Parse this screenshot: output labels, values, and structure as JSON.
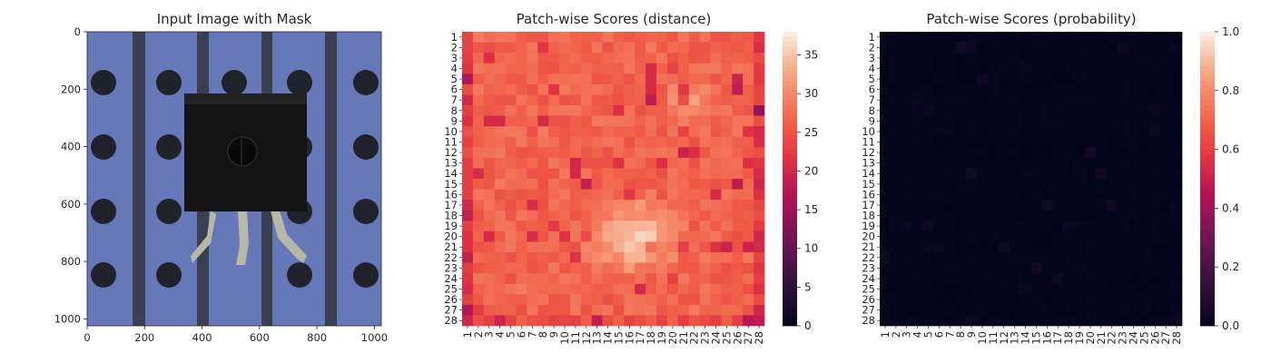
{
  "panels": [
    {
      "title": "Input Image with Mask",
      "type": "image",
      "x_ticks": [
        "0",
        "200",
        "400",
        "600",
        "800",
        "1000"
      ],
      "y_ticks": [
        "0",
        "200",
        "400",
        "600",
        "800",
        "1000"
      ],
      "image_extent": [
        0,
        1024
      ],
      "content": "photo of a black transistor package on a blue perforated board"
    },
    {
      "title": "Patch-wise Scores (distance)",
      "type": "heatmap",
      "colormap": "rocket",
      "grid": "28x28",
      "colorbar_ticks": [
        "0",
        "5",
        "10",
        "15",
        "20",
        "25",
        "30",
        "35"
      ],
      "colorbar_range": [
        0,
        38
      ]
    },
    {
      "title": "Patch-wise Scores (probability)",
      "type": "heatmap",
      "colormap": "rocket",
      "grid": "28x28",
      "colorbar_ticks": [
        "0.0",
        "0.2",
        "0.4",
        "0.6",
        "0.8",
        "1.0"
      ],
      "colorbar_range": [
        0,
        1
      ]
    }
  ],
  "chart_data": [
    {
      "type": "image",
      "title": "Input Image with Mask",
      "xlim": [
        0,
        1024
      ],
      "ylim": [
        1024,
        0
      ]
    },
    {
      "type": "heatmap",
      "title": "Patch-wise Scores (distance)",
      "rows": [
        "1",
        "2",
        "3",
        "4",
        "5",
        "6",
        "7",
        "8",
        "9",
        "10",
        "11",
        "12",
        "13",
        "14",
        "15",
        "16",
        "17",
        "18",
        "19",
        "20",
        "21",
        "22",
        "23",
        "24",
        "25",
        "26",
        "27",
        "28"
      ],
      "cols": [
        "1",
        "2",
        "3",
        "4",
        "5",
        "6",
        "7",
        "8",
        "9",
        "10",
        "11",
        "12",
        "13",
        "14",
        "15",
        "16",
        "17",
        "18",
        "19",
        "20",
        "21",
        "22",
        "23",
        "24",
        "25",
        "26",
        "27",
        "28"
      ],
      "value_range": [
        0,
        38
      ],
      "values_summary": "values mostly 22-30; bright region (~30-37) in lower-center rows 15-23, cols 11-21; darker cells (~18-22) along left and right borders"
    },
    {
      "type": "heatmap",
      "title": "Patch-wise Scores (probability)",
      "rows": [
        "1",
        "2",
        "3",
        "4",
        "5",
        "6",
        "7",
        "8",
        "9",
        "10",
        "11",
        "12",
        "13",
        "14",
        "15",
        "16",
        "17",
        "18",
        "19",
        "20",
        "21",
        "22",
        "23",
        "24",
        "25",
        "26",
        "27",
        "28"
      ],
      "cols": [
        "1",
        "2",
        "3",
        "4",
        "5",
        "6",
        "7",
        "8",
        "9",
        "10",
        "11",
        "12",
        "13",
        "14",
        "15",
        "16",
        "17",
        "18",
        "19",
        "20",
        "21",
        "22",
        "23",
        "24",
        "25",
        "26",
        "27",
        "28"
      ],
      "value_range": [
        0,
        1
      ],
      "values_summary": "nearly all values ~0.0, a few faint cells around 0.02-0.05"
    }
  ]
}
